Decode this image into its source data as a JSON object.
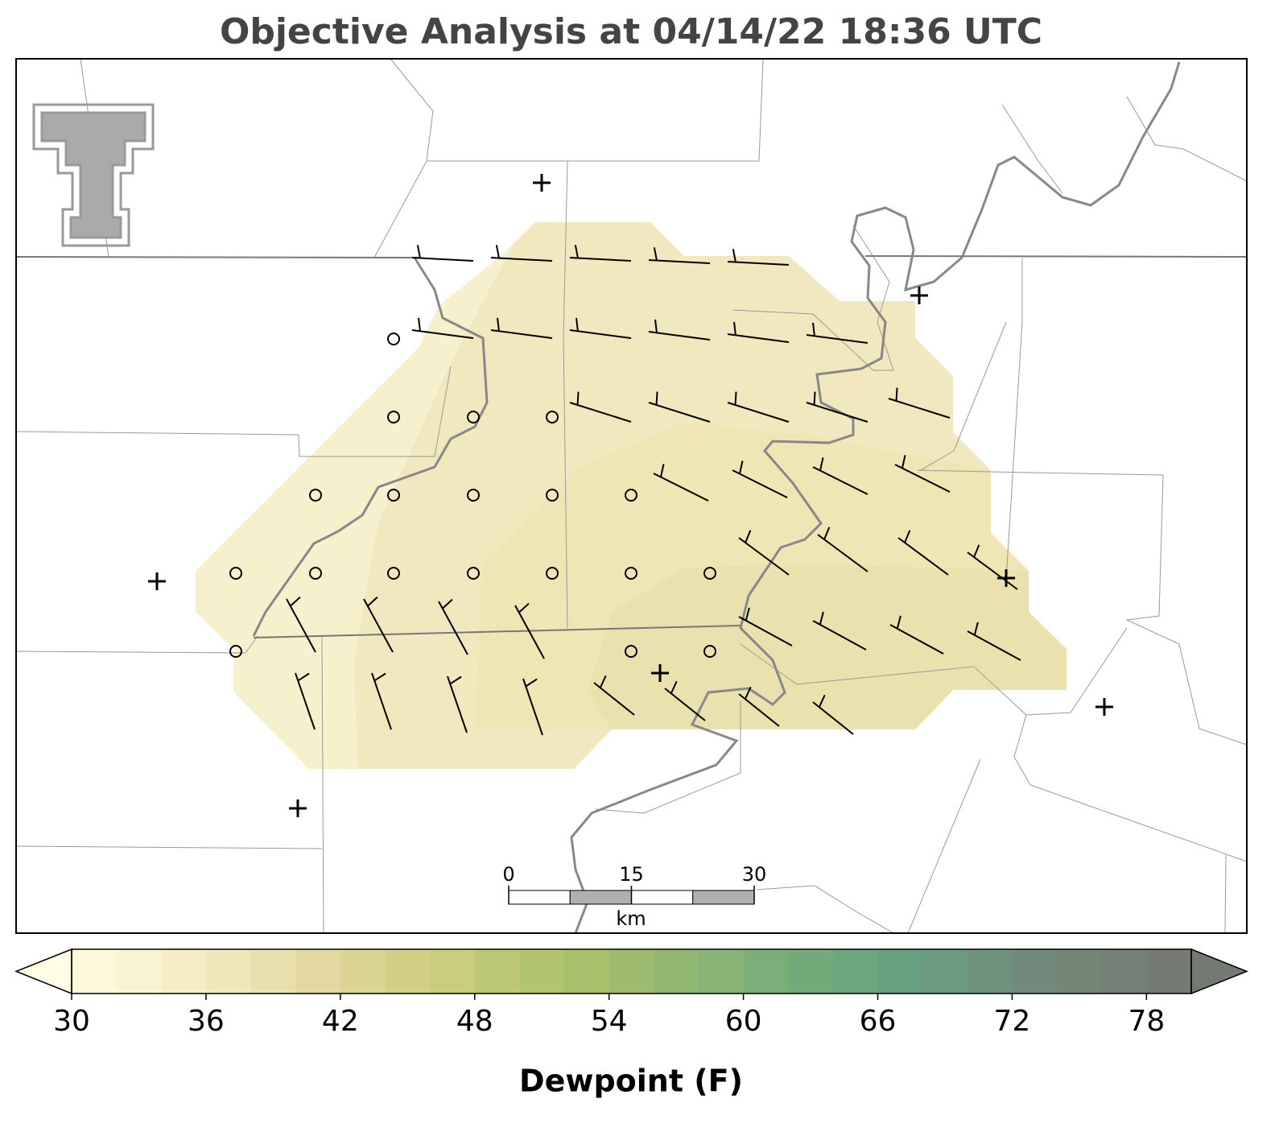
{
  "title": "Objective Analysis at 04/14/22 18:36 UTC",
  "colorbar": {
    "label": "Dewpoint (F)",
    "range": [
      30,
      80
    ],
    "ticks": [
      30,
      36,
      42,
      48,
      54,
      60,
      66,
      72,
      78
    ],
    "colors": [
      "#fdfadc",
      "#f9f5d2",
      "#f4edc6",
      "#efe6bb",
      "#e9e0ae",
      "#e3d9a0",
      "#dbd493",
      "#d2cf86",
      "#c8cc7d",
      "#bdc874",
      "#b2c46e",
      "#a8c06c",
      "#9cbb6e",
      "#90b872",
      "#86b375",
      "#7cae77",
      "#73aa7a",
      "#6ba67c",
      "#67a07f",
      "#6a9a80",
      "#6f927f",
      "#718a7b",
      "#738577",
      "#748075",
      "#747a72"
    ],
    "under_color": "#fffde6",
    "over_color": "#737a72"
  },
  "scale_bar": {
    "ticks": [
      0,
      15,
      30
    ],
    "unit": "km"
  }
}
